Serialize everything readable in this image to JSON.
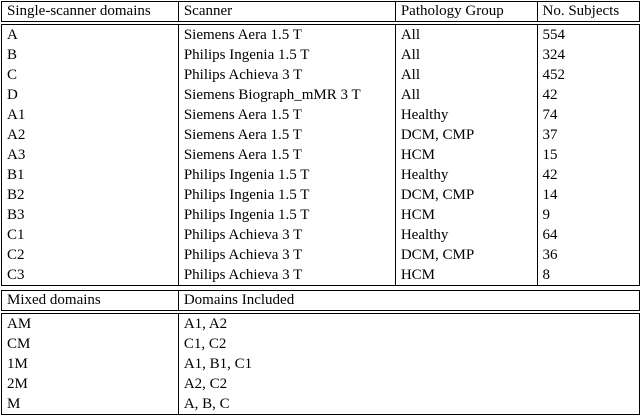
{
  "page": {
    "background_color": "#ffffff",
    "border_color": "#000000",
    "text_color": "#000000"
  },
  "single_scanner_table": {
    "columns": [
      "Single-scanner domains",
      "Scanner",
      "Pathology Group",
      "No. Subjects"
    ],
    "rows": [
      [
        "A",
        "Siemens Aera 1.5 T",
        "All",
        "554"
      ],
      [
        "B",
        "Philips Ingenia 1.5 T",
        "All",
        "324"
      ],
      [
        "C",
        "Philips Achieva 3 T",
        "All",
        "452"
      ],
      [
        "D",
        "Siemens Biograph_mMR 3 T",
        "All",
        "42"
      ],
      [
        "A1",
        "Siemens Aera 1.5 T",
        "Healthy",
        "74"
      ],
      [
        "A2",
        "Siemens Aera 1.5 T",
        "DCM, CMP",
        "37"
      ],
      [
        "A3",
        "Siemens Aera 1.5 T",
        "HCM",
        "15"
      ],
      [
        "B1",
        "Philips Ingenia 1.5 T",
        "Healthy",
        "42"
      ],
      [
        "B2",
        "Philips Ingenia 1.5 T",
        "DCM, CMP",
        "14"
      ],
      [
        "B3",
        "Philips Ingenia 1.5 T",
        "HCM",
        "9"
      ],
      [
        "C1",
        "Philips Achieva 3 T",
        "Healthy",
        "64"
      ],
      [
        "C2",
        "Philips Achieva 3 T",
        "DCM, CMP",
        "36"
      ],
      [
        "C3",
        "Philips Achieva 3 T",
        "HCM",
        "8"
      ]
    ]
  },
  "mixed_table": {
    "columns": [
      "Mixed domains",
      "Domains Included"
    ],
    "rows": [
      [
        "AM",
        "A1, A2"
      ],
      [
        "CM",
        "C1, C2"
      ],
      [
        "1M",
        "A1, B1, C1"
      ],
      [
        "2M",
        "A2, C2"
      ],
      [
        "M",
        "A, B, C"
      ]
    ]
  }
}
